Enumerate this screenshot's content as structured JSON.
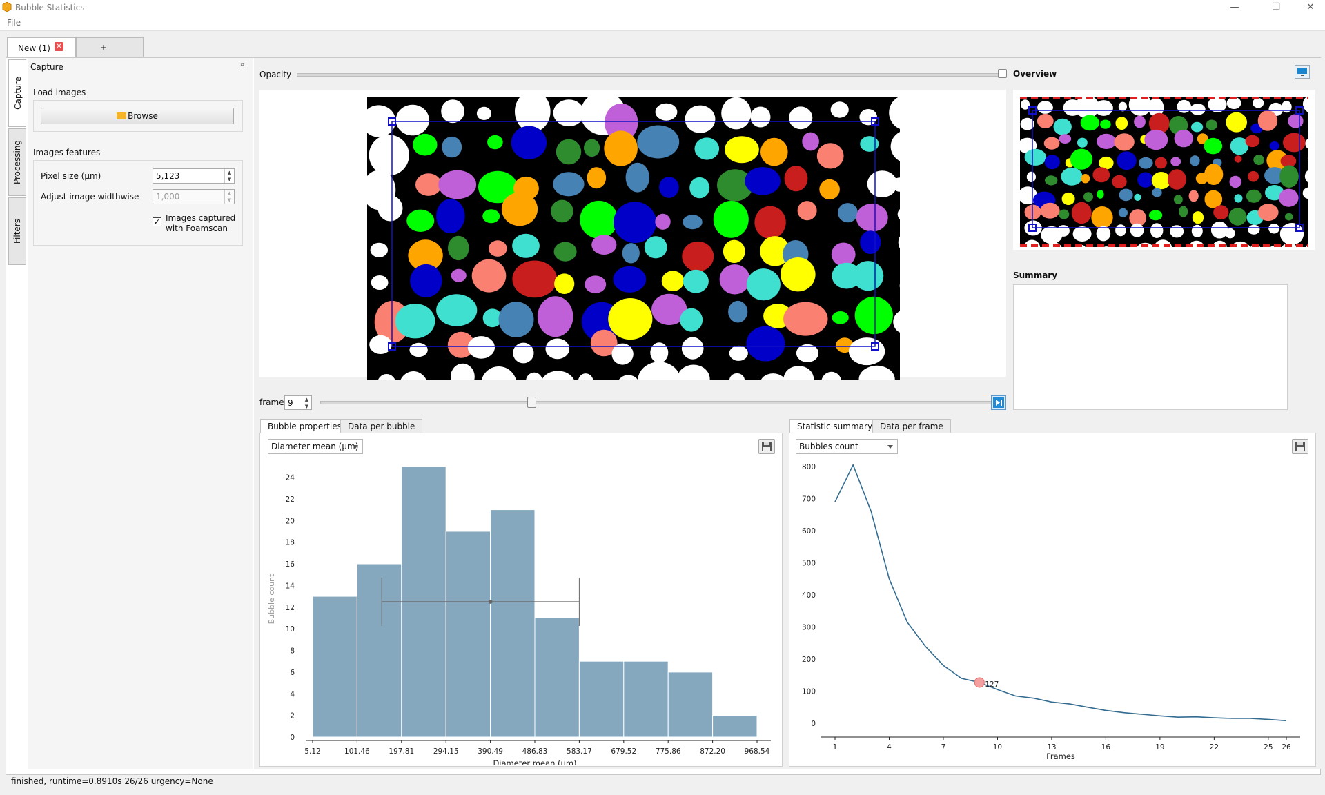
{
  "window": {
    "title": "Bubble Statistics",
    "controls": [
      "—",
      "❐",
      "✕"
    ]
  },
  "menu": {
    "file": "File"
  },
  "doc_tabs": {
    "active": "New (1)",
    "add": "+"
  },
  "side_tabs": [
    "Capture",
    "Processing",
    "Filters"
  ],
  "capture": {
    "header": "Capture",
    "load_images": "Load images",
    "browse": "Browse",
    "images_features": "Images features",
    "pixel_size_label": "Pixel size (µm)",
    "pixel_size_value": "5,123",
    "adjust_label": "Adjust image widthwise",
    "adjust_value": "1,000",
    "foamscan_line1": "Images captured",
    "foamscan_line2": "with Foamscan",
    "foamscan_checked": true
  },
  "viewer": {
    "opacity_label": "Opacity",
    "overview_title": "Overview",
    "summary_title": "Summary",
    "frame_label": "frame",
    "frame_value": "9"
  },
  "colors": {
    "bar": "#86a8bf",
    "line": "#336c91",
    "highlight": "#f4a0a0",
    "bubble_palette": [
      "#0000c8",
      "#2e8b2e",
      "#40e0d0",
      "#c060d8",
      "#00ff00",
      "#fa8072",
      "#4682b4",
      "#ffa500",
      "#c81e1e",
      "#ffff00"
    ]
  },
  "left_chart": {
    "tabs": [
      "Bubble properties",
      "Data per bubble"
    ],
    "selector": "Diameter mean (µm)"
  },
  "right_chart": {
    "tabs": [
      "Statistic summary",
      "Data per frame"
    ],
    "selector": "Bubbles count"
  },
  "chart_data": [
    {
      "type": "bar",
      "xlabel": "Diameter mean (µm)",
      "ylabel": "Bubble count",
      "x_ticks": [
        "5.12",
        "101.46",
        "197.81",
        "294.15",
        "390.49",
        "486.83",
        "583.17",
        "679.52",
        "775.86",
        "872.20",
        "968.54"
      ],
      "bin_edges": [
        5.12,
        101.46,
        197.81,
        294.15,
        390.49,
        486.83,
        583.17,
        679.52,
        775.86,
        872.2,
        968.54
      ],
      "values": [
        13,
        16,
        25,
        19,
        21,
        11,
        7,
        7,
        6,
        2
      ],
      "y_ticks": [
        0,
        2,
        4,
        6,
        8,
        10,
        12,
        14,
        16,
        18,
        20,
        22,
        24
      ],
      "ylim": [
        0,
        25.5
      ],
      "errorbar": {
        "center": 390.49,
        "low": 155,
        "high": 583.17,
        "y": 12.5
      }
    },
    {
      "type": "line",
      "xlabel": "Frames",
      "x_ticks": [
        1,
        4,
        7,
        10,
        13,
        16,
        19,
        22,
        25,
        26
      ],
      "y_ticks": [
        0,
        100,
        200,
        300,
        400,
        500,
        600,
        700,
        800
      ],
      "xlim": [
        1,
        26
      ],
      "ylim": [
        0,
        800
      ],
      "x": [
        1,
        2,
        3,
        4,
        5,
        6,
        7,
        8,
        9,
        10,
        11,
        12,
        13,
        14,
        15,
        16,
        17,
        18,
        19,
        20,
        21,
        22,
        23,
        24,
        25,
        26
      ],
      "y": [
        690,
        805,
        660,
        450,
        315,
        240,
        180,
        140,
        127,
        105,
        85,
        78,
        66,
        60,
        50,
        40,
        33,
        28,
        23,
        19,
        20,
        17,
        15,
        15,
        12,
        8
      ],
      "highlight": {
        "x": 9,
        "y": 127,
        "label": "127"
      }
    }
  ],
  "status": "finished, runtime=0.8910s 26/26 urgency=None"
}
